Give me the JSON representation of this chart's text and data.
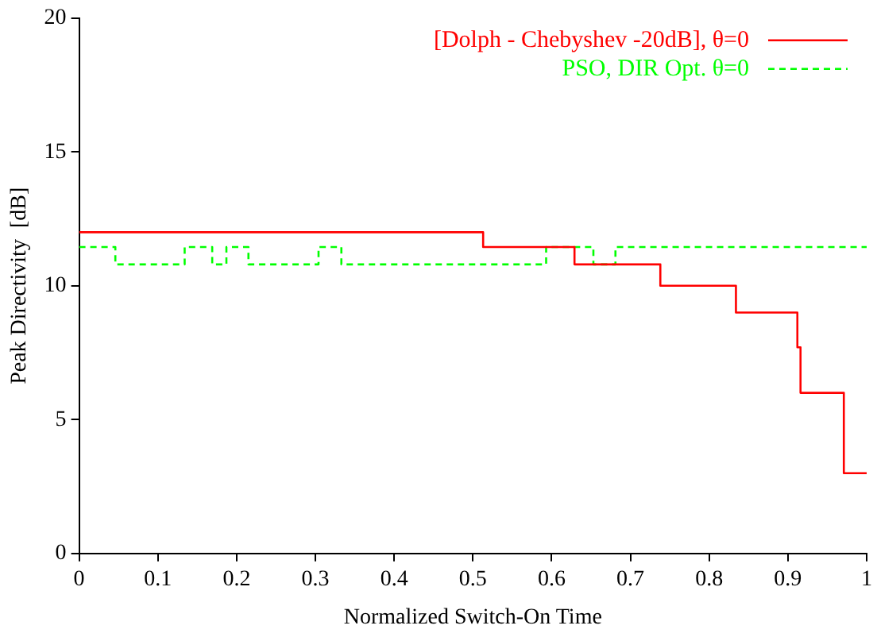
{
  "chart_data": {
    "type": "step",
    "xlabel": "Normalized Switch-On Time",
    "ylabel": "Peak Directivity  [dB]",
    "xlim": [
      0,
      1
    ],
    "ylim": [
      0,
      20
    ],
    "xticks": [
      0,
      0.1,
      0.2,
      0.3,
      0.4,
      0.5,
      0.6,
      0.7,
      0.8,
      0.9,
      1
    ],
    "yticks": [
      0,
      5,
      10,
      15,
      20
    ],
    "grid": false,
    "legend": "top right",
    "marker": "none",
    "series": [
      {
        "name": "[Dolph - Chebyshev -20dB], θ=0",
        "color": "#ff0000",
        "line_style": "solid",
        "x": [
          0,
          0.513,
          0.629,
          0.738,
          0.834,
          0.912,
          0.916,
          0.971,
          1
        ],
        "values": [
          12,
          11.45,
          10.8,
          10,
          9,
          7.7,
          6,
          3,
          3
        ]
      },
      {
        "name": "PSO, DIR Opt. θ=0",
        "color": "#00ff00",
        "line_style": "dashed",
        "x": [
          0,
          0.046,
          0.134,
          0.169,
          0.187,
          0.215,
          0.304,
          0.333,
          0.593,
          0.653,
          0.681,
          1
        ],
        "values": [
          11.45,
          10.8,
          11.45,
          10.8,
          11.45,
          10.8,
          11.45,
          10.8,
          11.45,
          10.8,
          11.45,
          11.45
        ]
      }
    ]
  }
}
